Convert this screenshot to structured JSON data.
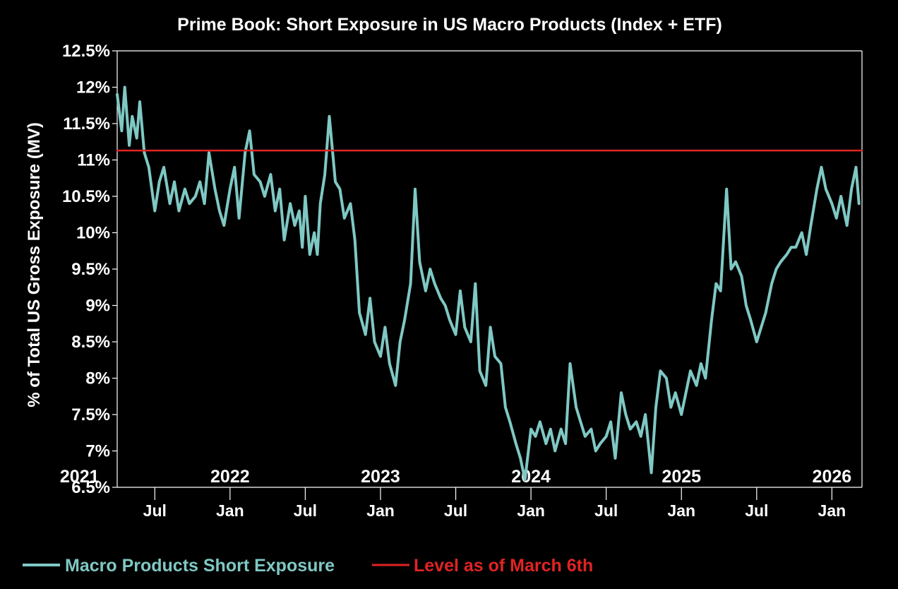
{
  "chart_data": {
    "type": "line",
    "title": "Prime Book: Short Exposure in US Macro Products (Index + ETF)",
    "xlabel": "",
    "ylabel": "% of Total US Gross Exposure (MV)",
    "ylim": [
      6.5,
      12.5
    ],
    "xlim": [
      2021.25,
      2026.2
    ],
    "yticks": [
      {
        "value": 12.5,
        "label": "12.5%"
      },
      {
        "value": 12.0,
        "label": "12%"
      },
      {
        "value": 11.5,
        "label": "11.5%"
      },
      {
        "value": 11.0,
        "label": "11%"
      },
      {
        "value": 10.5,
        "label": "10.5%"
      },
      {
        "value": 10.0,
        "label": "10%"
      },
      {
        "value": 9.5,
        "label": "9.5%"
      },
      {
        "value": 9.0,
        "label": "9%"
      },
      {
        "value": 8.5,
        "label": "8.5%"
      },
      {
        "value": 8.0,
        "label": "8%"
      },
      {
        "value": 7.5,
        "label": "7.5%"
      },
      {
        "value": 7.0,
        "label": "7%"
      },
      {
        "value": 6.5,
        "label": "6.5%"
      }
    ],
    "year_labels": [
      {
        "value": 2021,
        "label": "2021"
      },
      {
        "value": 2022,
        "label": "2022"
      },
      {
        "value": 2023,
        "label": "2023"
      },
      {
        "value": 2024,
        "label": "2024"
      },
      {
        "value": 2025,
        "label": "2025"
      },
      {
        "value": 2026,
        "label": "2026"
      }
    ],
    "month_ticks": [
      {
        "value": 2021.5,
        "label": "Jul"
      },
      {
        "value": 2022.0,
        "label": "Jan"
      },
      {
        "value": 2022.5,
        "label": "Jul"
      },
      {
        "value": 2023.0,
        "label": "Jan"
      },
      {
        "value": 2023.5,
        "label": "Jul"
      },
      {
        "value": 2024.0,
        "label": "Jan"
      },
      {
        "value": 2024.5,
        "label": "Jul"
      },
      {
        "value": 2025.0,
        "label": "Jan"
      },
      {
        "value": 2025.5,
        "label": "Jul"
      },
      {
        "value": 2026.0,
        "label": "Jan"
      }
    ],
    "series": [
      {
        "name": "Macro Products Short Exposure",
        "color": "#7fc8c4",
        "x": [
          2021.25,
          2021.28,
          2021.3,
          2021.33,
          2021.35,
          2021.38,
          2021.4,
          2021.43,
          2021.46,
          2021.48,
          2021.5,
          2021.53,
          2021.56,
          2021.6,
          2021.63,
          2021.66,
          2021.7,
          2021.73,
          2021.77,
          2021.8,
          2021.83,
          2021.86,
          2021.9,
          2021.93,
          2021.96,
          2022.0,
          2022.03,
          2022.06,
          2022.1,
          2022.13,
          2022.16,
          2022.2,
          2022.23,
          2022.27,
          2022.3,
          2022.33,
          2022.36,
          2022.4,
          2022.43,
          2022.46,
          2022.48,
          2022.5,
          2022.53,
          2022.56,
          2022.58,
          2022.6,
          2022.63,
          2022.66,
          2022.7,
          2022.73,
          2022.76,
          2022.8,
          2022.83,
          2022.86,
          2022.9,
          2022.93,
          2022.96,
          2023.0,
          2023.03,
          2023.06,
          2023.1,
          2023.13,
          2023.16,
          2023.2,
          2023.23,
          2023.26,
          2023.3,
          2023.33,
          2023.36,
          2023.4,
          2023.43,
          2023.46,
          2023.5,
          2023.53,
          2023.56,
          2023.6,
          2023.63,
          2023.66,
          2023.7,
          2023.73,
          2023.76,
          2023.8,
          2023.83,
          2023.86,
          2023.9,
          2023.93,
          2023.96,
          2024.0,
          2024.03,
          2024.06,
          2024.1,
          2024.13,
          2024.16,
          2024.2,
          2024.23,
          2024.26,
          2024.3,
          2024.33,
          2024.36,
          2024.4,
          2024.43,
          2024.46,
          2024.5,
          2024.53,
          2024.56,
          2024.6,
          2024.63,
          2024.66,
          2024.7,
          2024.73,
          2024.76,
          2024.8,
          2024.83,
          2024.86,
          2024.9,
          2024.93,
          2024.96,
          2025.0,
          2025.03,
          2025.06,
          2025.1,
          2025.13,
          2025.16,
          2025.2,
          2025.23,
          2025.26,
          2025.3,
          2025.33,
          2025.36,
          2025.4,
          2025.43,
          2025.46,
          2025.5,
          2025.53,
          2025.56,
          2025.6,
          2025.63,
          2025.66,
          2025.7,
          2025.73,
          2025.76,
          2025.8,
          2025.83,
          2025.86,
          2025.9,
          2025.93,
          2025.96,
          2026.0,
          2026.03,
          2026.06,
          2026.1,
          2026.13,
          2026.16,
          2026.18
        ],
        "values": [
          11.9,
          11.4,
          12.0,
          11.2,
          11.6,
          11.3,
          11.8,
          11.1,
          10.9,
          10.6,
          10.3,
          10.7,
          10.9,
          10.4,
          10.7,
          10.3,
          10.6,
          10.4,
          10.5,
          10.7,
          10.4,
          11.1,
          10.6,
          10.3,
          10.1,
          10.6,
          10.9,
          10.2,
          11.1,
          11.4,
          10.8,
          10.7,
          10.5,
          10.8,
          10.3,
          10.6,
          9.9,
          10.4,
          10.1,
          10.3,
          9.8,
          10.5,
          9.7,
          10.0,
          9.7,
          10.4,
          10.8,
          11.6,
          10.7,
          10.6,
          10.2,
          10.4,
          9.9,
          8.9,
          8.6,
          9.1,
          8.5,
          8.3,
          8.7,
          8.2,
          7.9,
          8.5,
          8.8,
          9.3,
          10.6,
          9.6,
          9.2,
          9.5,
          9.3,
          9.1,
          9.0,
          8.8,
          8.6,
          9.2,
          8.7,
          8.5,
          9.3,
          8.1,
          7.9,
          8.7,
          8.3,
          8.2,
          7.6,
          7.4,
          7.1,
          6.9,
          6.6,
          7.3,
          7.2,
          7.4,
          7.1,
          7.3,
          7.0,
          7.3,
          7.1,
          8.2,
          7.6,
          7.4,
          7.2,
          7.3,
          7.0,
          7.1,
          7.2,
          7.4,
          6.9,
          7.8,
          7.5,
          7.3,
          7.4,
          7.2,
          7.5,
          6.7,
          7.6,
          8.1,
          8.0,
          7.6,
          7.8,
          7.5,
          7.8,
          8.1,
          7.9,
          8.2,
          8.0,
          8.8,
          9.3,
          9.2,
          10.6,
          9.5,
          9.6,
          9.4,
          9.0,
          8.8,
          8.5,
          8.7,
          8.9,
          9.3,
          9.5,
          9.6,
          9.7,
          9.8,
          9.8,
          10.0,
          9.7,
          10.1,
          10.6,
          10.9,
          10.6,
          10.4,
          10.2,
          10.5,
          10.1,
          10.6,
          10.9,
          10.4
        ],
        "line_width": 4
      },
      {
        "name": "Level as of March 6th",
        "color": "#e02424",
        "x": [
          2021.25,
          2026.2
        ],
        "values": [
          11.13,
          11.13
        ],
        "line_width": 2.5
      }
    ],
    "legend": {
      "placement": "bottom-left",
      "items": [
        {
          "label": "Macro Products Short Exposure",
          "color": "#7fc8c4"
        },
        {
          "label": "Level as of March 6th",
          "color": "#e02424"
        }
      ]
    },
    "grid": false
  }
}
